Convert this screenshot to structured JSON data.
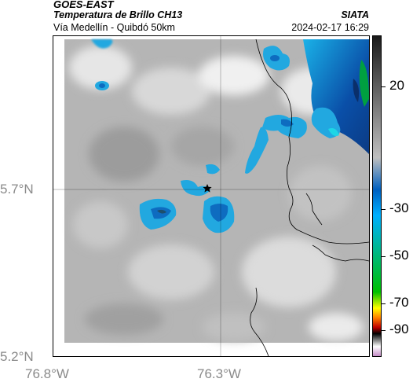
{
  "header": {
    "title": "GOES-EAST",
    "subtitle": "Temperatura de Brillo CH13",
    "location": "Vía Medellín - Quibdó 50km",
    "organization": "SIATA",
    "datetime": "2024-02-17 16:29"
  },
  "axes": {
    "lat_labels": [
      "5.7°N",
      "5.2°N"
    ],
    "lon_labels": [
      "76.8°W",
      "76.3°W"
    ],
    "label_color": "#8a8a8a"
  },
  "colorbar": {
    "labels": [
      "20",
      "-30",
      "-50",
      "-70",
      "-90"
    ],
    "palette": [
      "#c48bc6",
      "#ffffff",
      "#000000",
      "#c00000",
      "#ff8000",
      "#ffff00",
      "#00c000",
      "#00b0ff",
      "#0060c0",
      "#bfbfbf",
      "#1a1a1a"
    ]
  },
  "map": {
    "marker_icon": "star-icon",
    "cloud_colors": [
      "#22a8e0",
      "#0e6cc0",
      "#1dd6e6",
      "#c6e8f2"
    ],
    "background_gray": "#b5b5b5"
  }
}
